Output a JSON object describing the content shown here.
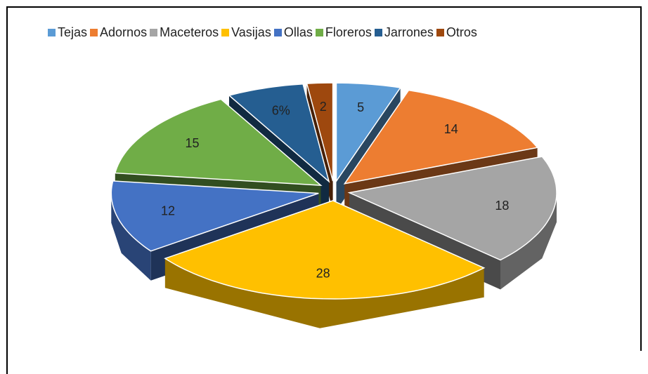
{
  "chart_data": {
    "type": "pie3d",
    "categories": [
      "Tejas",
      "Adornos",
      "Maceteros",
      "Vasijas",
      "Ollas",
      "Floreros",
      "Jarrones",
      "Otros"
    ],
    "values": [
      5,
      14,
      18,
      28,
      12,
      15,
      6,
      2
    ],
    "value_labels": [
      "5",
      "14",
      "18",
      "28",
      "12",
      "15",
      "6%",
      "2"
    ],
    "colors": [
      "#5b9bd5",
      "#ed7d31",
      "#a5a5a5",
      "#ffc000",
      "#4472c4",
      "#70ad47",
      "#255e91",
      "#9e480e"
    ],
    "legend": "top"
  }
}
